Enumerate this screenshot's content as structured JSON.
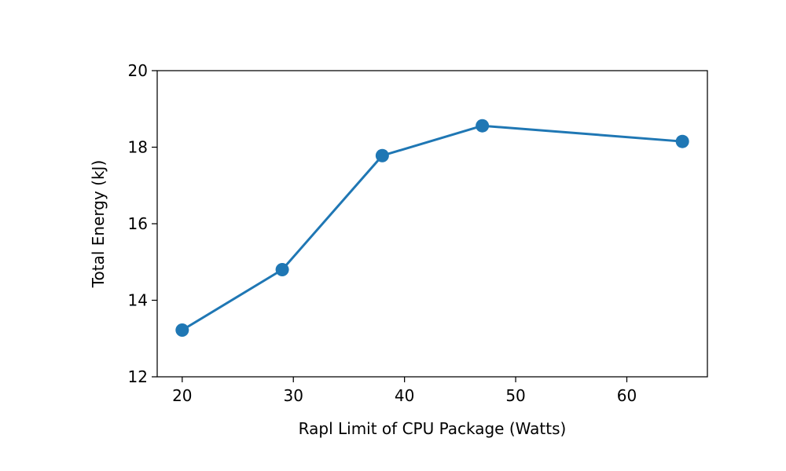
{
  "chart_data": {
    "type": "line",
    "title": "",
    "xlabel": "Rapl Limit of CPU Package (Watts)",
    "ylabel": "Total Energy (kJ)",
    "x": [
      20,
      29,
      38,
      47,
      65
    ],
    "series": [
      {
        "values": [
          13.22,
          14.8,
          17.78,
          18.56,
          18.15
        ],
        "color": "#1f77b4",
        "marker": "circle"
      }
    ],
    "xlim": [
      17.75,
      67.25
    ],
    "ylim": [
      12,
      20
    ],
    "xticks": [
      "20",
      "30",
      "40",
      "50",
      "60"
    ],
    "yticks": [
      "12",
      "14",
      "16",
      "18",
      "20"
    ],
    "grid": false,
    "legend": "none"
  }
}
